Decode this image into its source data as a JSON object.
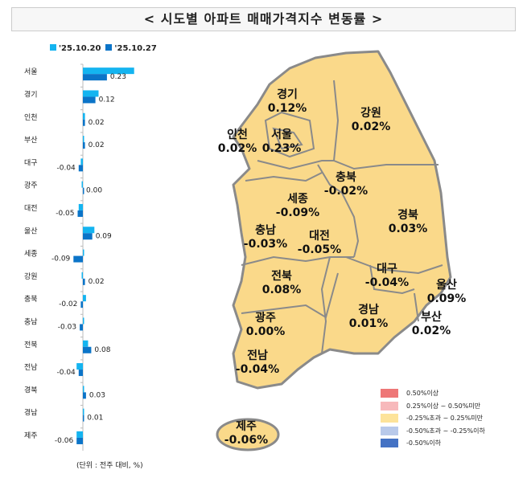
{
  "title": "< 시도별 아파트 매매가격지수 변동률 >",
  "chart_data": {
    "type": "bar",
    "orientation": "horizontal",
    "categories": [
      "서울",
      "경기",
      "인천",
      "부산",
      "대구",
      "광주",
      "대전",
      "울산",
      "세종",
      "강원",
      "충북",
      "충남",
      "전북",
      "전남",
      "경북",
      "경남",
      "제주"
    ],
    "series": [
      {
        "name": "'25.10.20",
        "color": "#14b4f0",
        "values": [
          0.49,
          0.15,
          0.02,
          0.0,
          -0.02,
          -0.01,
          -0.04,
          0.11,
          0.01,
          -0.01,
          0.03,
          0.0,
          0.05,
          -0.06,
          0.0,
          0.0,
          -0.06
        ]
      },
      {
        "name": "'25.10.27",
        "color": "#0b74c8",
        "values": [
          0.23,
          0.12,
          0.02,
          0.02,
          -0.04,
          0.0,
          -0.05,
          0.09,
          -0.09,
          0.02,
          -0.02,
          -0.03,
          0.08,
          -0.04,
          0.03,
          0.01,
          -0.06
        ]
      }
    ],
    "data_labels": [
      "0.23",
      "0.12",
      "0.02",
      "0.02",
      "-0.04",
      "0.00",
      "-0.05",
      "0.09",
      "-0.09",
      "0.02",
      "-0.02",
      "-0.03",
      "0.08",
      "-0.04",
      "0.03",
      "0.01",
      "-0.06"
    ],
    "legend": "top",
    "unit_note": "(단위 : 전주 대비, %)"
  },
  "map": {
    "fill": "#fad98a",
    "regions": [
      {
        "name": "경기",
        "value": "0.12%"
      },
      {
        "name": "강원",
        "value": "0.02%"
      },
      {
        "name": "인천",
        "value": "0.02%"
      },
      {
        "name": "서울",
        "value": "0.23%"
      },
      {
        "name": "충북",
        "value": "-0.02%"
      },
      {
        "name": "세종",
        "value": "-0.09%"
      },
      {
        "name": "경북",
        "value": "0.03%"
      },
      {
        "name": "충남",
        "value": "-0.03%"
      },
      {
        "name": "대전",
        "value": "-0.05%"
      },
      {
        "name": "대구",
        "value": "-0.04%"
      },
      {
        "name": "전북",
        "value": "0.08%"
      },
      {
        "name": "울산",
        "value": "0.09%"
      },
      {
        "name": "광주",
        "value": "0.00%"
      },
      {
        "name": "경남",
        "value": "0.01%"
      },
      {
        "name": "부산",
        "value": "0.02%"
      },
      {
        "name": "전남",
        "value": "-0.04%"
      },
      {
        "name": "제주",
        "value": "-0.06%"
      }
    ],
    "legend": [
      {
        "label": "0.50%이상",
        "color": "#ee7777"
      },
      {
        "label": "0.25%이상 ~ 0.50%미만",
        "color": "#f7b9bb"
      },
      {
        "label": "-0.25%초과 ~ 0.25%미만",
        "color": "#fde39a"
      },
      {
        "label": "-0.50%초과 ~ -0.25%이하",
        "color": "#b8c9ea"
      },
      {
        "label": "-0.50%이하",
        "color": "#4472c4"
      }
    ]
  }
}
